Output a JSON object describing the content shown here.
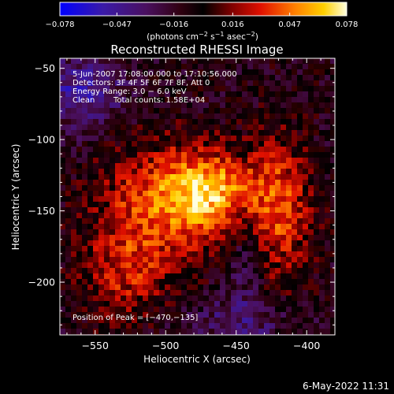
{
  "chart_data": {
    "type": "heatmap",
    "title": "Reconstructed RHESSI Image",
    "xlabel": "Heliocentric X (arcsec)",
    "ylabel": "Heliocentric Y (arcsec)",
    "xlim": [
      -575,
      -380
    ],
    "ylim": [
      -237,
      -43
    ],
    "xticks": [
      -550,
      -500,
      -450,
      -400
    ],
    "yticks": [
      -50,
      -100,
      -150,
      -200
    ],
    "xtick_labels": [
      "−550",
      "−500",
      "−450",
      "−400"
    ],
    "ytick_labels": [
      "−50",
      "−100",
      "−150",
      "−200"
    ],
    "colorbar": {
      "vmin": -0.078,
      "vmax": 0.078,
      "ticks": [
        -0.078,
        -0.047,
        -0.016,
        0.016,
        0.047,
        0.078
      ],
      "tick_labels": [
        "−0.078",
        "−0.047",
        "−0.016",
        "0.016",
        "0.047",
        "0.078"
      ],
      "unit_prefix": "(photons cm",
      "unit_exp1": "−2",
      "unit_mid": " s",
      "unit_exp2": "−1",
      "unit_mid2": " asec",
      "unit_exp3": "−2",
      "unit_suffix": ")"
    },
    "annotations": {
      "time": "5‑Jun‑2007 17:08:00.000 to 17:10:56.000",
      "detectors": "Detectors: 3F 4F 5F 6F 7F 8F, Att 0",
      "energy": "Energy Range: 3.0 − 6.0 keV",
      "clean_label": "Clean",
      "counts": "Total counts: 1.58E+04",
      "peak": "Position of Peak = [−470,−135]"
    },
    "peak_position": [
      -470,
      -135
    ],
    "grid": false
  },
  "footer": {
    "timestamp": "6‑May‑2022 11:31"
  }
}
